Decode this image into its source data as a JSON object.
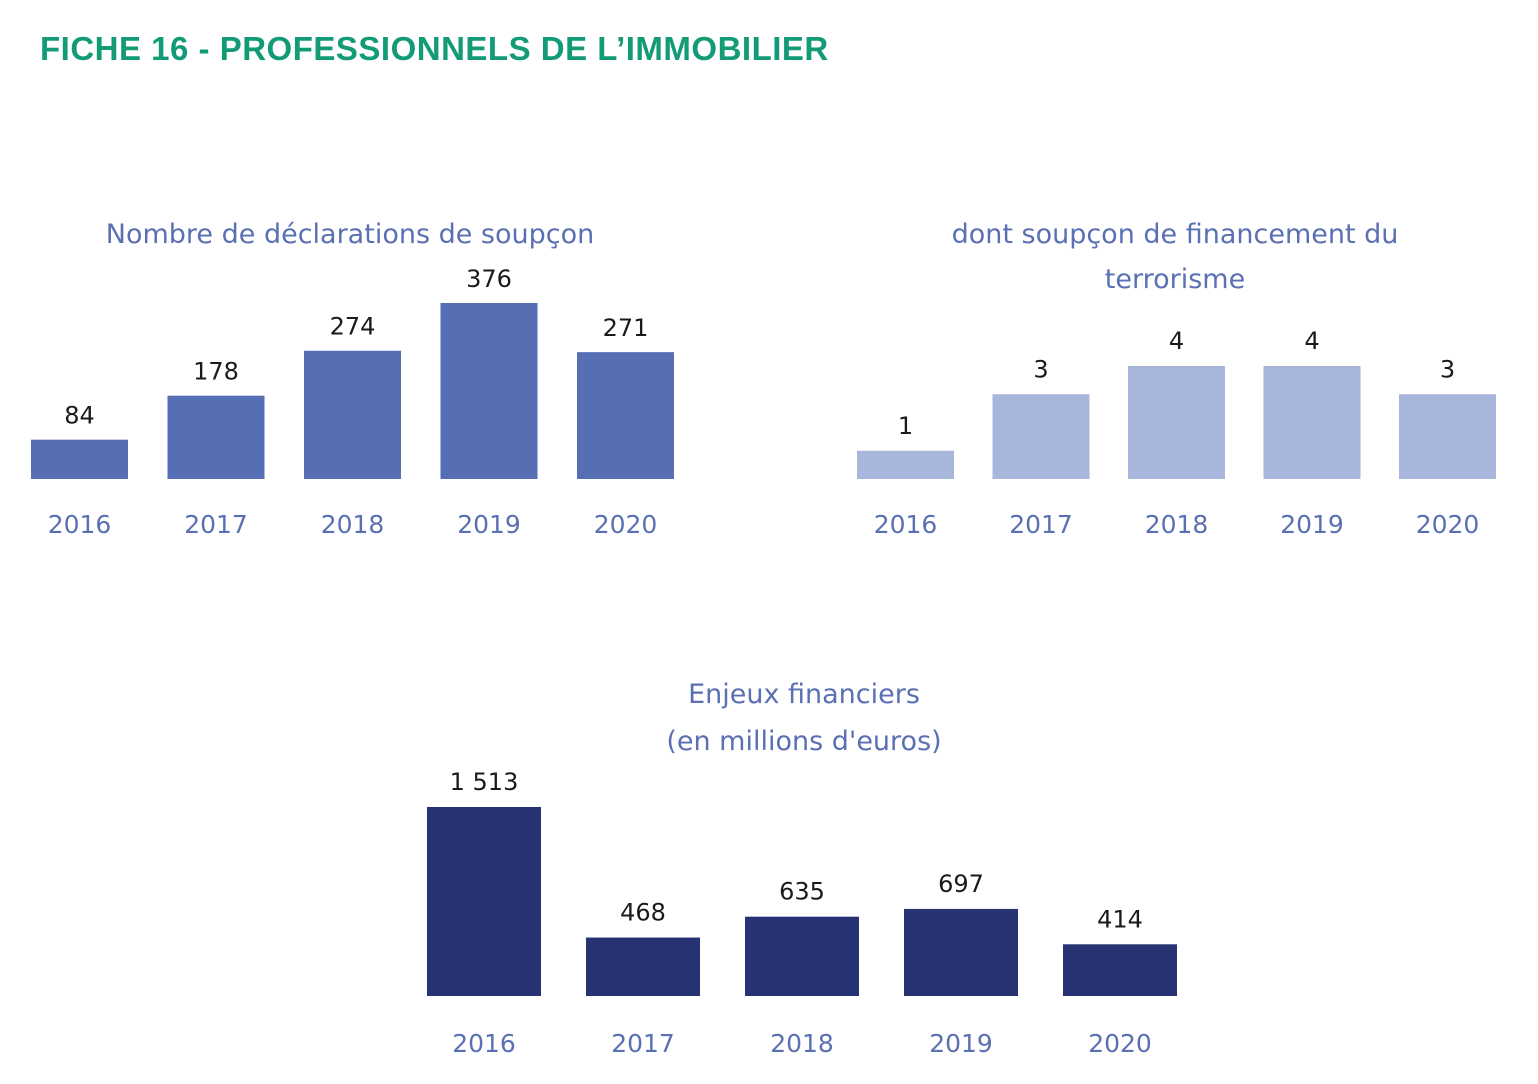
{
  "page": {
    "title": "FICHE 16 - PROFESSIONNELS DE L’IMMOBILIER"
  },
  "chart_data": [
    {
      "type": "bar",
      "title": "Nombre de déclarations de soupçon",
      "title_lines": [
        "Nombre de déclarations de soupçon"
      ],
      "categories": [
        "2016",
        "2017",
        "2018",
        "2019",
        "2020"
      ],
      "values": [
        84,
        178,
        274,
        376,
        271
      ],
      "value_labels": [
        "84",
        "178",
        "274",
        "376",
        "271"
      ],
      "color": "#566fb4",
      "xlabel": "",
      "ylabel": "",
      "ylim": [
        0,
        376
      ],
      "grid": false,
      "legend": "none"
    },
    {
      "type": "bar",
      "title": "dont soupçon de financement du terrorisme",
      "title_lines": [
        "dont soupçon de financement du",
        "terrorisme"
      ],
      "categories": [
        "2016",
        "2017",
        "2018",
        "2019",
        "2020"
      ],
      "values": [
        1,
        3,
        4,
        4,
        3
      ],
      "value_labels": [
        "1",
        "3",
        "4",
        "4",
        "3"
      ],
      "color": "#a9b6dc",
      "xlabel": "",
      "ylabel": "",
      "ylim": [
        0,
        4
      ],
      "grid": false,
      "legend": "none"
    },
    {
      "type": "bar",
      "title": "Enjeux financiers (en millions d'euros)",
      "title_lines": [
        "Enjeux financiers",
        "(en millions d'euros)"
      ],
      "categories": [
        "2016",
        "2017",
        "2018",
        "2019",
        "2020"
      ],
      "values": [
        1513,
        468,
        635,
        697,
        414
      ],
      "value_labels": [
        "1 513",
        "468",
        "635",
        "697",
        "414"
      ],
      "color": "#273272",
      "xlabel": "",
      "ylabel": "",
      "ylim": [
        0,
        1513
      ],
      "grid": false,
      "legend": "none"
    }
  ]
}
